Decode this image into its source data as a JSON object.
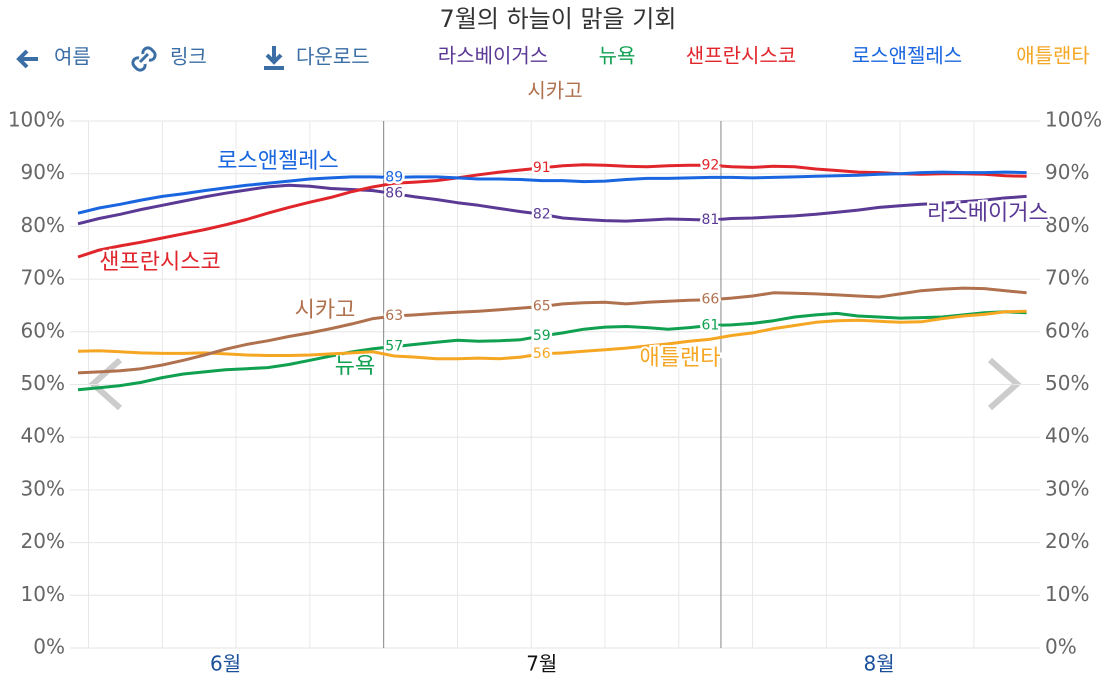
{
  "toolbar": {
    "back": "여름",
    "link": "링크",
    "download": "다운로드"
  },
  "chart_data": {
    "type": "line",
    "title": "7월의 하늘이 맑을 기회",
    "categories": [
      null,
      null,
      null,
      null,
      null,
      null,
      null,
      "6월",
      null,
      null,
      null,
      null,
      null,
      null,
      null,
      null,
      null,
      null,
      null,
      null,
      null,
      null,
      "7월",
      null,
      null,
      null,
      null,
      null,
      null,
      null,
      null,
      null,
      null,
      null,
      null,
      null,
      null,
      null,
      "8월",
      null,
      null,
      null,
      null,
      null,
      null,
      null
    ],
    "ylim": [
      0,
      100
    ],
    "yticks": [
      {
        "value": 0,
        "label": "0%"
      },
      {
        "value": 10,
        "label": "10%"
      },
      {
        "value": 20,
        "label": "20%"
      },
      {
        "value": 30,
        "label": "30%"
      },
      {
        "value": 40,
        "label": "40%"
      },
      {
        "value": 50,
        "label": "50%"
      },
      {
        "value": 60,
        "label": "60%"
      },
      {
        "value": 70,
        "label": "70%"
      },
      {
        "value": 80,
        "label": "80%"
      },
      {
        "value": 90,
        "label": "90%"
      },
      {
        "value": 100,
        "label": "100%"
      }
    ],
    "grid": true,
    "series": [
      {
        "name": "라스베이거스",
        "color": "#5b3a96",
        "values": [
          80.5,
          81.5,
          82.3,
          83.2,
          84,
          84.8,
          85.6,
          86.3,
          86.9,
          87.5,
          87.8,
          87.6,
          87.2,
          87,
          86.8,
          86.2,
          85.6,
          85.1,
          84.5,
          84,
          83.4,
          82.8,
          82.3,
          81.6,
          81.3,
          81.1,
          81,
          81.2,
          81.4,
          81.3,
          81.2,
          81.5,
          81.6,
          81.8,
          82,
          82.3,
          82.7,
          83.1,
          83.6,
          83.9,
          84.2,
          84.4,
          84.7,
          85,
          85.4,
          85.7
        ],
        "value_labels": [
          null,
          null,
          null,
          null,
          null,
          null,
          null,
          null,
          null,
          null,
          null,
          null,
          null,
          null,
          null,
          "86",
          null,
          null,
          null,
          null,
          null,
          null,
          "82",
          null,
          null,
          null,
          null,
          null,
          null,
          null,
          "81",
          null,
          null,
          null,
          null,
          null,
          null,
          null,
          null,
          null,
          null,
          null,
          null,
          null,
          null,
          null
        ]
      },
      {
        "name": "뉴욕",
        "color": "#0fa050",
        "values": [
          49,
          49.4,
          49.8,
          50.4,
          51.3,
          52,
          52.4,
          52.8,
          53,
          53.2,
          53.8,
          54.6,
          55.4,
          56.2,
          56.8,
          57.2,
          57.6,
          58,
          58.4,
          58.2,
          58.3,
          58.5,
          59.2,
          59.8,
          60.5,
          60.9,
          61,
          60.8,
          60.5,
          60.8,
          61.2,
          61.3,
          61.6,
          62.1,
          62.8,
          63.2,
          63.5,
          63,
          62.8,
          62.6,
          62.7,
          62.8,
          63.2,
          63.6,
          63.8,
          63.6
        ],
        "value_labels": [
          null,
          null,
          null,
          null,
          null,
          null,
          null,
          null,
          null,
          null,
          null,
          null,
          null,
          null,
          null,
          "57",
          null,
          null,
          null,
          null,
          null,
          null,
          "59",
          null,
          null,
          null,
          null,
          null,
          null,
          null,
          "61",
          null,
          null,
          null,
          null,
          null,
          null,
          null,
          null,
          null,
          null,
          null,
          null,
          null,
          null,
          null
        ]
      },
      {
        "name": "샌프란시스코",
        "color": "#e0252b",
        "values": [
          74.2,
          75.5,
          76.3,
          77,
          77.8,
          78.6,
          79.4,
          80.3,
          81.3,
          82.5,
          83.6,
          84.6,
          85.5,
          86.6,
          87.5,
          88.2,
          88.4,
          88.7,
          89.2,
          89.8,
          90.3,
          90.7,
          91.1,
          91.5,
          91.7,
          91.6,
          91.4,
          91.3,
          91.5,
          91.6,
          91.6,
          91.3,
          91.2,
          91.4,
          91.3,
          90.9,
          90.6,
          90.3,
          90.2,
          90,
          89.9,
          90,
          90,
          89.9,
          89.6,
          89.5
        ],
        "value_labels": [
          null,
          null,
          null,
          null,
          null,
          null,
          null,
          null,
          null,
          null,
          null,
          null,
          null,
          null,
          null,
          null,
          null,
          null,
          null,
          null,
          null,
          null,
          "91",
          null,
          null,
          null,
          null,
          null,
          null,
          null,
          "92",
          null,
          null,
          null,
          null,
          null,
          null,
          null,
          null,
          null,
          null,
          null,
          null,
          null,
          null,
          null
        ]
      },
      {
        "name": "로스앤젤레스",
        "color": "#1a66e0",
        "values": [
          82.5,
          83.5,
          84.2,
          85,
          85.7,
          86.2,
          86.8,
          87.3,
          87.8,
          88.2,
          88.6,
          89,
          89.2,
          89.4,
          89.4,
          89.3,
          89.4,
          89.4,
          89.2,
          89,
          89,
          88.9,
          88.7,
          88.7,
          88.5,
          88.6,
          88.9,
          89.1,
          89.1,
          89.2,
          89.3,
          89.3,
          89.2,
          89.3,
          89.4,
          89.5,
          89.6,
          89.7,
          89.9,
          90,
          90.2,
          90.3,
          90.2,
          90.2,
          90.3,
          90.2
        ],
        "value_labels": [
          null,
          null,
          null,
          null,
          null,
          null,
          null,
          null,
          null,
          null,
          null,
          null,
          null,
          null,
          null,
          "89",
          null,
          null,
          null,
          null,
          null,
          null,
          null,
          null,
          null,
          null,
          null,
          null,
          null,
          null,
          null,
          null,
          null,
          null,
          null,
          null,
          null,
          null,
          null,
          null,
          null,
          null,
          null,
          null,
          null,
          null
        ]
      },
      {
        "name": "애틀랜타",
        "color": "#f5a623",
        "values": [
          56.3,
          56.4,
          56.2,
          56,
          55.9,
          55.9,
          56,
          55.8,
          55.6,
          55.5,
          55.5,
          55.6,
          55.8,
          56,
          56.2,
          55.4,
          55.2,
          54.9,
          54.9,
          55,
          54.9,
          55.2,
          55.8,
          56,
          56.3,
          56.6,
          56.9,
          57.3,
          57.7,
          58.2,
          58.6,
          59.3,
          59.8,
          60.6,
          61.2,
          61.8,
          62.1,
          62.2,
          62,
          61.8,
          61.9,
          62.5,
          63,
          63.3,
          63.8,
          63.9
        ],
        "value_labels": [
          null,
          null,
          null,
          null,
          null,
          null,
          null,
          null,
          null,
          null,
          null,
          null,
          null,
          null,
          null,
          null,
          null,
          null,
          null,
          null,
          null,
          null,
          "56",
          null,
          null,
          null,
          null,
          null,
          null,
          null,
          null,
          null,
          null,
          null,
          null,
          null,
          null,
          null,
          null,
          null,
          null,
          null,
          null,
          null,
          null,
          null
        ]
      },
      {
        "name": "시카고",
        "color": "#b0714e",
        "values": [
          52.2,
          52.4,
          52.6,
          53,
          53.7,
          54.6,
          55.6,
          56.7,
          57.6,
          58.3,
          59.1,
          59.8,
          60.6,
          61.5,
          62.5,
          63,
          63.2,
          63.5,
          63.7,
          63.9,
          64.2,
          64.5,
          64.8,
          65.3,
          65.5,
          65.6,
          65.3,
          65.6,
          65.8,
          66,
          66.1,
          66.4,
          66.8,
          67.4,
          67.3,
          67.2,
          67,
          66.8,
          66.6,
          67.2,
          67.8,
          68.1,
          68.3,
          68.2,
          67.8,
          67.4
        ],
        "value_labels": [
          null,
          null,
          null,
          null,
          null,
          null,
          null,
          null,
          null,
          null,
          null,
          null,
          null,
          null,
          null,
          "63",
          null,
          null,
          null,
          null,
          null,
          null,
          "65",
          null,
          null,
          null,
          null,
          null,
          null,
          null,
          "66",
          null,
          null,
          null,
          null,
          null,
          null,
          null,
          null,
          null,
          null,
          null,
          null,
          null,
          null,
          null
        ]
      }
    ]
  }
}
